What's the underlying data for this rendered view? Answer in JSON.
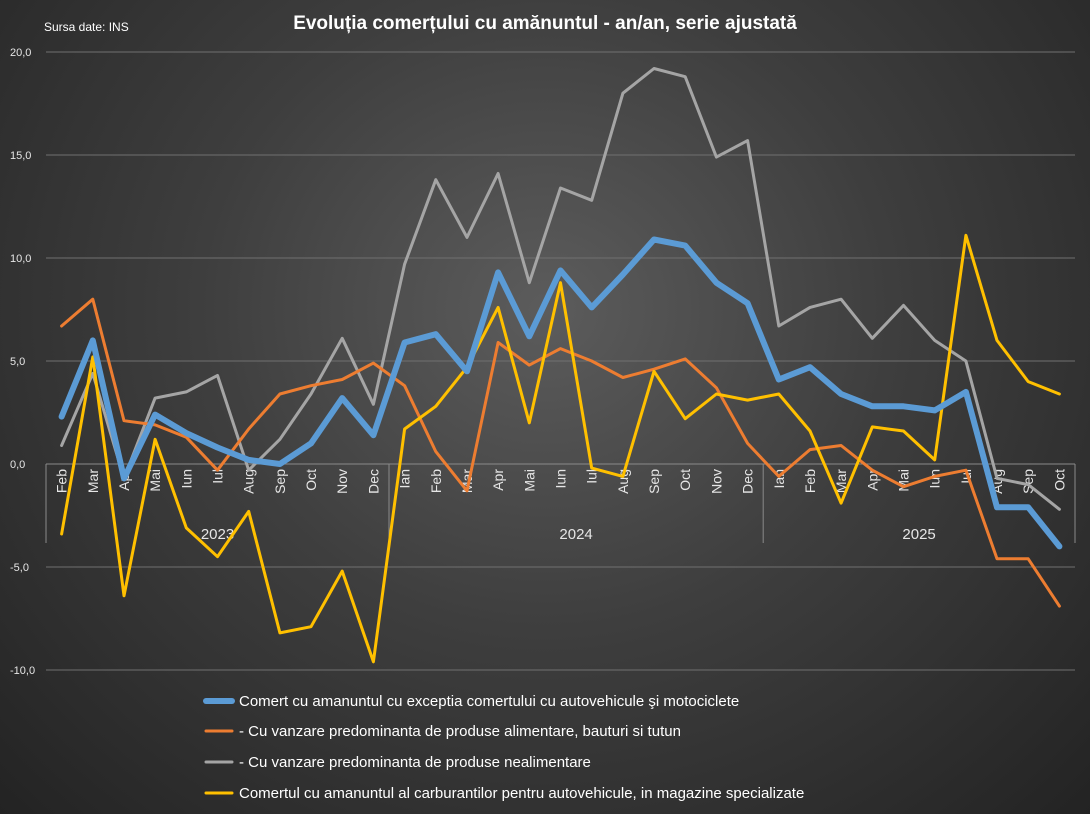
{
  "chart_data": {
    "type": "line",
    "title": "Evoluția comerțului cu amănuntul - an/an, serie ajustată",
    "source": "Sursa date: INS",
    "ylim": [
      -10,
      20
    ],
    "yticks": [
      "-10,0",
      "-5,0",
      "0,0",
      "5,0",
      "10,0",
      "15,0",
      "20,0"
    ],
    "ytick_values": [
      -10,
      -5,
      0,
      5,
      10,
      15,
      20
    ],
    "grid": true,
    "legend_position": "bottom",
    "categories": [
      "Feb",
      "Mar",
      "Apr",
      "Mai",
      "Iun",
      "Iul",
      "Aug",
      "Sep",
      "Oct",
      "Nov",
      "Dec",
      "Ian",
      "Feb",
      "Mar",
      "Apr",
      "Mai",
      "Iun",
      "Iul",
      "Aug",
      "Sep",
      "Oct",
      "Nov",
      "Dec",
      "Ian",
      "Feb",
      "Mar",
      "Apr",
      "Mai",
      "Iun",
      "Iul",
      "Aug",
      "Sep",
      "Oct"
    ],
    "years": [
      {
        "label": "2023",
        "start": 0,
        "end": 10
      },
      {
        "label": "2024",
        "start": 11,
        "end": 22
      },
      {
        "label": "2025",
        "start": 23,
        "end": 32
      }
    ],
    "series": [
      {
        "name": "- Cu vanzare predominanta de produse nealimentare",
        "color": "#a5a5a5",
        "values": [
          0.9,
          4.4,
          -0.7,
          3.2,
          3.5,
          4.3,
          -0.3,
          1.2,
          3.4,
          6.1,
          2.9,
          9.7,
          13.8,
          11.0,
          14.1,
          8.8,
          13.4,
          12.8,
          18.0,
          19.2,
          18.8,
          14.9,
          15.7,
          6.7,
          7.6,
          8.0,
          6.1,
          7.7,
          6.0,
          5.0,
          -0.7,
          -1.0,
          -2.2
        ]
      },
      {
        "name": "- Cu vanzare predominanta de produse alimentare, bauturi si tutun",
        "color": "#ed7d31",
        "values": [
          6.7,
          8.0,
          2.1,
          1.9,
          1.3,
          -0.3,
          1.7,
          3.4,
          3.8,
          4.1,
          4.9,
          3.8,
          0.6,
          -1.3,
          5.9,
          4.8,
          5.6,
          5.0,
          4.2,
          4.6,
          5.1,
          3.7,
          1.0,
          -0.6,
          0.7,
          0.9,
          -0.3,
          -1.1,
          -0.6,
          -0.3,
          -4.6,
          -4.6,
          -6.9
        ]
      },
      {
        "name": "Comertul cu amanuntul al carburantilor pentru autovehicule, in magazine specializate",
        "color": "#ffc000",
        "values": [
          -3.4,
          5.2,
          -6.4,
          1.2,
          -3.1,
          -4.5,
          -2.3,
          -8.2,
          -7.9,
          -5.2,
          -9.6,
          1.7,
          2.8,
          4.7,
          7.6,
          2.0,
          8.8,
          -0.2,
          -0.6,
          4.5,
          2.2,
          3.4,
          3.1,
          3.4,
          1.6,
          -1.9,
          1.8,
          1.6,
          0.2,
          11.1,
          6.0,
          4.0,
          3.4
        ]
      },
      {
        "name": "Comert cu amanuntul cu exceptia comertului cu autovehicule şi motociclete",
        "color": "#5b9bd5",
        "values": [
          2.3,
          6.0,
          -0.7,
          2.4,
          1.5,
          0.8,
          0.2,
          0.0,
          1.0,
          3.2,
          1.4,
          5.9,
          6.3,
          4.5,
          9.3,
          6.2,
          9.4,
          7.6,
          9.2,
          10.9,
          10.6,
          8.8,
          7.8,
          4.1,
          4.7,
          3.4,
          2.8,
          2.8,
          2.6,
          3.5,
          -2.1,
          -2.1,
          -4.0
        ]
      }
    ],
    "legend": [
      "Comert cu amanuntul cu exceptia comertului cu autovehicule şi motociclete",
      "- Cu vanzare predominanta de produse alimentare, bauturi si tutun",
      "- Cu vanzare predominanta de produse nealimentare",
      "Comertul cu amanuntul al carburantilor pentru autovehicule, in magazine specializate"
    ],
    "legend_colors": [
      "#5b9bd5",
      "#ed7d31",
      "#a5a5a5",
      "#ffc000"
    ]
  }
}
